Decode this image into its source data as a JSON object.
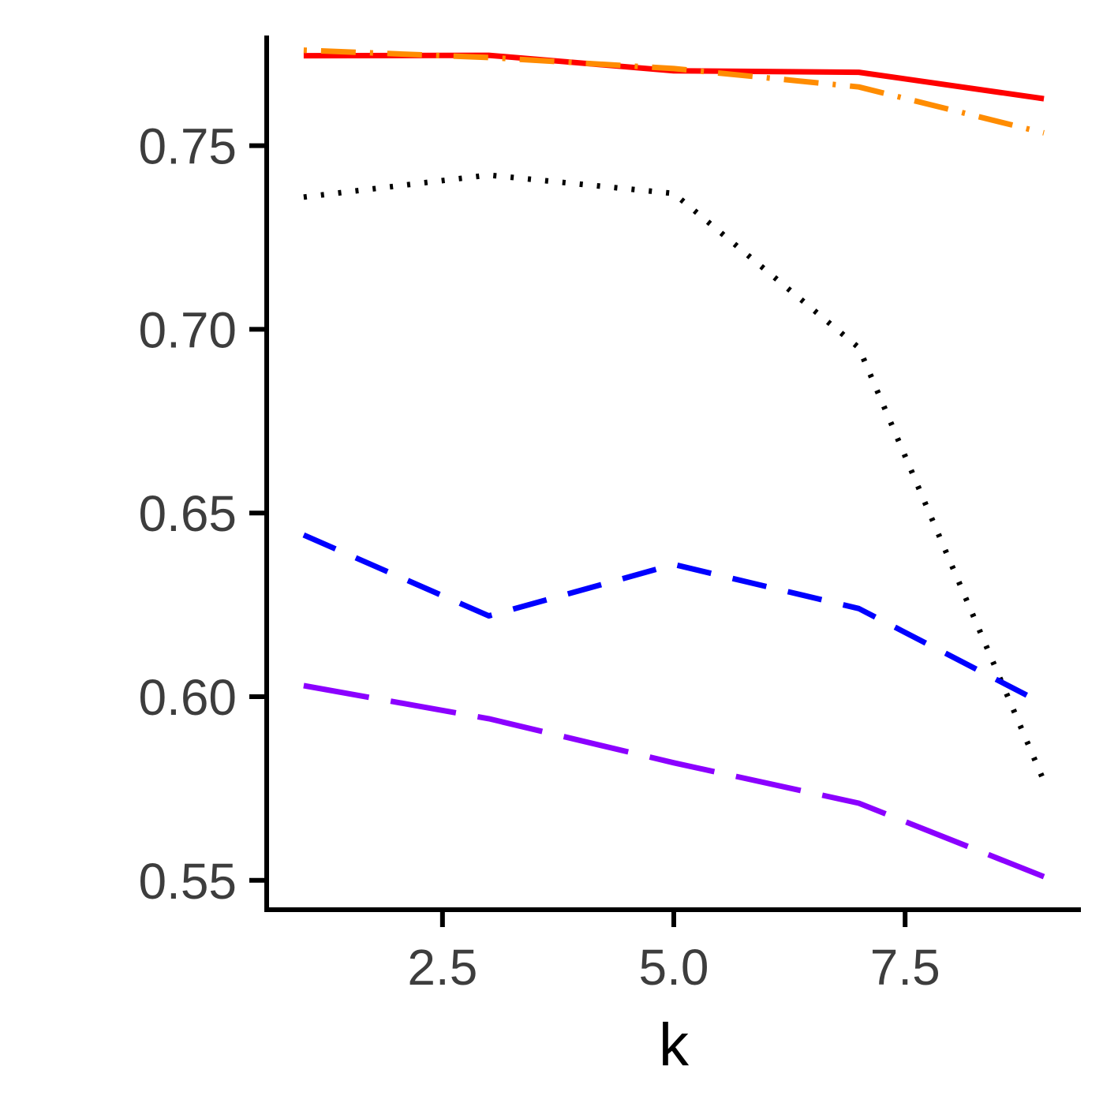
{
  "chart_data": {
    "type": "line",
    "title": "",
    "xlabel": "k",
    "ylabel": "",
    "xlim": [
      0.6,
      9.4
    ],
    "ylim": [
      0.542,
      0.78
    ],
    "xticks": [
      2.5,
      5.0,
      7.5
    ],
    "xtick_labels": [
      "2.5",
      "5.0",
      "7.5"
    ],
    "yticks": [
      0.55,
      0.6,
      0.65,
      0.7,
      0.75
    ],
    "ytick_labels": [
      "0.55",
      "0.60",
      "0.65",
      "0.70",
      "0.75"
    ],
    "grid": false,
    "legend": "none",
    "x": [
      1,
      3,
      5,
      7,
      9
    ],
    "series": [
      {
        "values": [
          0.7745,
          0.7746,
          0.7704,
          0.77,
          0.7628
        ],
        "color": "#ff0000",
        "style": "solid"
      },
      {
        "values": [
          0.776,
          0.774,
          0.771,
          0.766,
          0.7535
        ],
        "color": "#ff8c00",
        "style": "dotdash"
      },
      {
        "values": [
          0.736,
          0.742,
          0.737,
          0.695,
          0.577
        ],
        "color": "#000000",
        "style": "dotted"
      },
      {
        "values": [
          0.644,
          0.622,
          0.636,
          0.624,
          0.598
        ],
        "color": "#0000ff",
        "style": "dashed"
      },
      {
        "values": [
          0.603,
          0.594,
          0.582,
          0.571,
          0.551
        ],
        "color": "#8b00ff",
        "style": "longdash"
      }
    ]
  }
}
